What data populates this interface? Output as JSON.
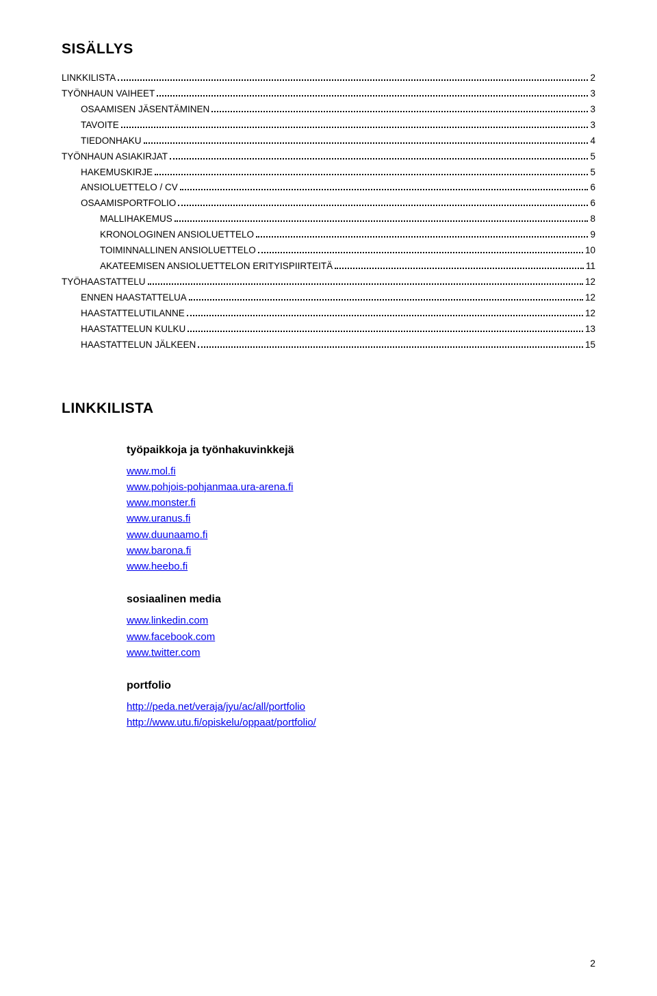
{
  "title": "SISÄLLYS",
  "toc": [
    {
      "label": "LINKKILISTA",
      "page": "2",
      "indent": 0
    },
    {
      "label": "TYÖNHAUN VAIHEET",
      "page": "3",
      "indent": 0
    },
    {
      "label": "OSAAMISEN JÄSENTÄMINEN",
      "page": "3",
      "indent": 1
    },
    {
      "label": "TAVOITE",
      "page": "3",
      "indent": 1
    },
    {
      "label": "TIEDONHAKU",
      "page": "4",
      "indent": 1
    },
    {
      "label": "TYÖNHAUN ASIAKIRJAT",
      "page": "5",
      "indent": 0
    },
    {
      "label": "HAKEMUSKIRJE",
      "page": "5",
      "indent": 1
    },
    {
      "label": "ANSIOLUETTELO / CV",
      "page": "6",
      "indent": 1
    },
    {
      "label": "OSAAMISPORTFOLIO",
      "page": "6",
      "indent": 1
    },
    {
      "label": "MALLIHAKEMUS",
      "page": "8",
      "indent": 2
    },
    {
      "label": "KRONOLOGINEN ANSIOLUETTELO",
      "page": "9",
      "indent": 2
    },
    {
      "label": "TOIMINNALLINEN ANSIOLUETTELO",
      "page": "10",
      "indent": 2
    },
    {
      "label": "AKATEEMISEN ANSIOLUETTELON ERITYISPIIRTEITÄ",
      "page": "11",
      "indent": 2
    },
    {
      "label": "TYÖHAASTATTELU",
      "page": "12",
      "indent": 0
    },
    {
      "label": "ENNEN HAASTATTELUA",
      "page": "12",
      "indent": 1
    },
    {
      "label": "HAASTATTELUTILANNE",
      "page": "12",
      "indent": 1
    },
    {
      "label": "HAASTATTELUN KULKU",
      "page": "13",
      "indent": 1
    },
    {
      "label": "HAASTATTELUN JÄLKEEN",
      "page": "15",
      "indent": 1
    }
  ],
  "section_heading": "LINKKILISTA",
  "groups": [
    {
      "heading": "työpaikkoja ja työnhakuvinkkejä",
      "links": [
        "www.mol.fi",
        "www.pohjois-pohjanmaa.ura-arena.fi",
        "www.monster.fi",
        "www.uranus.fi",
        "www.duunaamo.fi",
        "www.barona.fi",
        "www.heebo.fi"
      ]
    },
    {
      "heading": "sosiaalinen media",
      "links": [
        "www.linkedin.com",
        "www.facebook.com",
        "www.twitter.com"
      ]
    },
    {
      "heading": "portfolio",
      "links": [
        "http://peda.net/veraja/jyu/ac/all/portfolio",
        "http://www.utu.fi/opiskelu/oppaat/portfolio/"
      ]
    }
  ],
  "page_number": "2",
  "colors": {
    "link": "#0000ee",
    "text": "#000000",
    "background": "#ffffff"
  }
}
